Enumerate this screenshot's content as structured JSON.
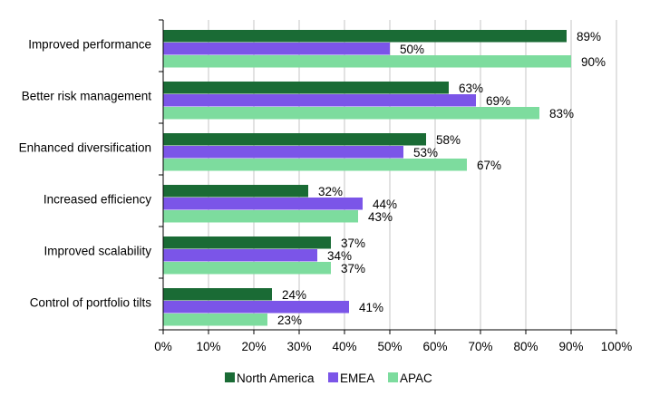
{
  "chart_data": {
    "type": "bar",
    "orientation": "horizontal",
    "categories": [
      "Improved performance",
      "Better risk management",
      "Enhanced diversification",
      "Increased efficiency",
      "Improved scalability",
      "Control of portfolio tilts"
    ],
    "series": [
      {
        "name": "North America",
        "color": "#1a6b35",
        "values": [
          89,
          63,
          58,
          32,
          37,
          24
        ]
      },
      {
        "name": "EMEA",
        "color": "#7b55e8",
        "values": [
          50,
          69,
          53,
          44,
          34,
          41
        ]
      },
      {
        "name": "APAC",
        "color": "#7ddc9e",
        "values": [
          90,
          83,
          67,
          43,
          37,
          23
        ]
      }
    ],
    "xlim": [
      0,
      100
    ],
    "xticks": [
      0,
      10,
      20,
      30,
      40,
      50,
      60,
      70,
      80,
      90,
      100
    ],
    "tick_suffix": "%",
    "value_suffix": "%",
    "grid": "vertical",
    "legend": "bottom"
  }
}
